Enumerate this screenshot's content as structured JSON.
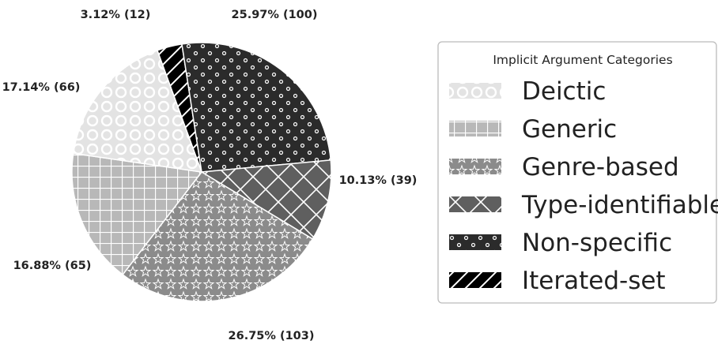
{
  "chart_data": {
    "type": "pie",
    "legend_title": "Implicit Argument Categories",
    "legend_position": "right",
    "slices": [
      {
        "name": "Iterated-set",
        "percent": 3.12,
        "count": 12,
        "label": "3.12%  (12)",
        "color": "#000000",
        "pattern": "diagonal-lines"
      },
      {
        "name": "Non-specific",
        "percent": 25.97,
        "count": 100,
        "label": "25.97%  (100)",
        "color": "#2b2b2b",
        "pattern": "small-circles"
      },
      {
        "name": "Type-identifiable",
        "percent": 10.13,
        "count": 39,
        "label": "10.13%  (39)",
        "color": "#5f5f5f",
        "pattern": "crosshatch"
      },
      {
        "name": "Genre-based",
        "percent": 26.75,
        "count": 103,
        "label": "26.75%  (103)",
        "color": "#8b8b8b",
        "pattern": "stars"
      },
      {
        "name": "Generic",
        "percent": 16.88,
        "count": 65,
        "label": "16.88%  (65)",
        "color": "#b8b8b8",
        "pattern": "grid"
      },
      {
        "name": "Deictic",
        "percent": 17.14,
        "count": 66,
        "label": "17.14%  (66)",
        "color": "#e3e3e3",
        "pattern": "circles"
      }
    ],
    "legend_order": [
      "Deictic",
      "Generic",
      "Genre-based",
      "Type-identifiable",
      "Non-specific",
      "Iterated-set"
    ]
  }
}
